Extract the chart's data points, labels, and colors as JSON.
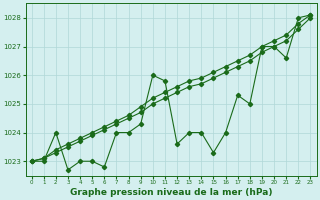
{
  "title": "Graphe pression niveau de la mer (hPa)",
  "x": [
    0,
    1,
    2,
    3,
    4,
    5,
    6,
    7,
    8,
    9,
    10,
    11,
    12,
    13,
    14,
    15,
    16,
    17,
    18,
    19,
    20,
    21,
    22,
    23
  ],
  "line1": [
    1023.0,
    1023.0,
    1024.0,
    1022.7,
    1023.0,
    1023.0,
    1022.8,
    1024.0,
    1024.0,
    1024.3,
    1026.0,
    1025.8,
    1023.6,
    1024.0,
    1024.0,
    1023.3,
    1024.0,
    1025.3,
    1025.0,
    1027.0,
    1027.0,
    1026.6,
    1028.0,
    1028.1
  ],
  "line2": [
    1023.0,
    1023.1,
    1023.3,
    1023.5,
    1023.7,
    1023.9,
    1024.1,
    1024.3,
    1024.5,
    1024.7,
    1025.0,
    1025.2,
    1025.4,
    1025.6,
    1025.7,
    1025.9,
    1026.1,
    1026.3,
    1026.5,
    1026.8,
    1027.0,
    1027.2,
    1027.6,
    1028.0
  ],
  "line3": [
    1023.0,
    1023.1,
    1023.4,
    1023.6,
    1023.8,
    1024.0,
    1024.2,
    1024.4,
    1024.6,
    1024.9,
    1025.2,
    1025.4,
    1025.6,
    1025.8,
    1025.9,
    1026.1,
    1026.3,
    1026.5,
    1026.7,
    1027.0,
    1027.2,
    1027.4,
    1027.8,
    1028.1
  ],
  "ylim": [
    1022.5,
    1028.5
  ],
  "yticks": [
    1023,
    1024,
    1025,
    1026,
    1027,
    1028
  ],
  "xticks": [
    0,
    1,
    2,
    3,
    4,
    5,
    6,
    7,
    8,
    9,
    10,
    11,
    12,
    13,
    14,
    15,
    16,
    17,
    18,
    19,
    20,
    21,
    22,
    23
  ],
  "line_color": "#1a6b1a",
  "bg_color": "#d4efef",
  "grid_color": "#b0d8d8",
  "title_color": "#1a6b1a",
  "title_fontsize": 6.5,
  "marker": "D",
  "marker_size": 2.2,
  "linewidth": 0.8
}
